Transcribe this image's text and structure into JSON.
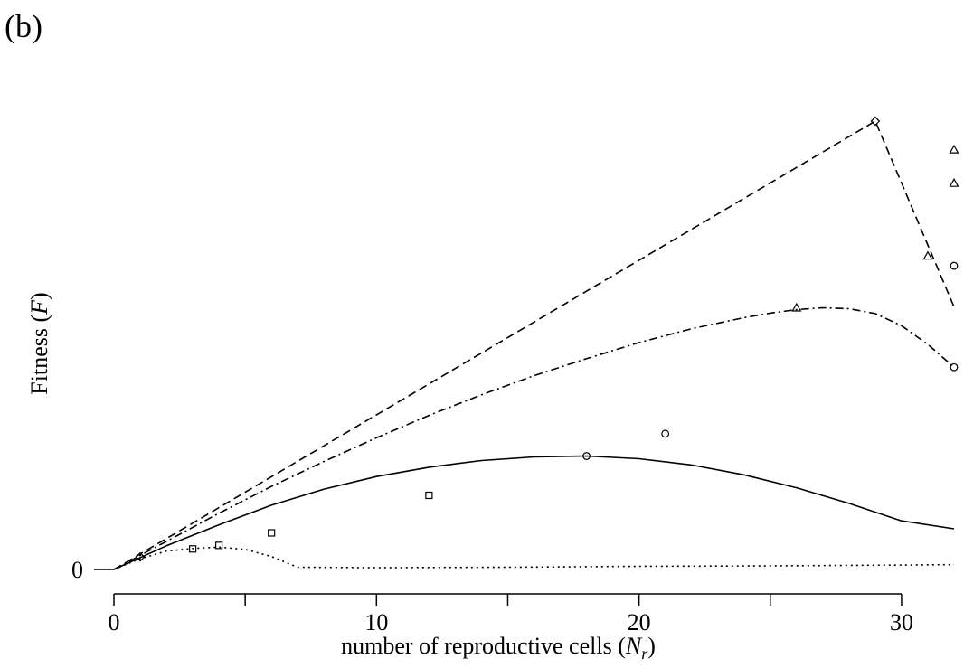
{
  "panel_label": "(b)",
  "chart_data": {
    "type": "line",
    "xlabel_text": "number of reproductive cells (",
    "xlabel_var": "N",
    "xlabel_sub": "r",
    "xlabel_close": ")",
    "ylabel_text": "Fitness (",
    "ylabel_var": "F",
    "ylabel_close": ")",
    "xlim": [
      0,
      32
    ],
    "ylim": [
      0,
      100
    ],
    "x_ticks": [
      0,
      5,
      10,
      15,
      20,
      25,
      30
    ],
    "x_tick_labels": [
      "0",
      "",
      "10",
      "",
      "20",
      "",
      "30"
    ],
    "y_ticks": [
      0
    ],
    "y_tick_labels": [
      "0"
    ],
    "grid": false,
    "legend": "none",
    "series": [
      {
        "style": "dashed",
        "x": [
          0,
          29,
          32
        ],
        "y": [
          0,
          100.4,
          58.8
        ]
      },
      {
        "style": "dashdot",
        "x": [
          0,
          2,
          4,
          6,
          8,
          10,
          12,
          14,
          16,
          18,
          20,
          22,
          24,
          25,
          26,
          27,
          28,
          29,
          30,
          31,
          32
        ],
        "y": [
          0,
          6.3,
          12.6,
          18.6,
          24.2,
          29.5,
          34.5,
          39.1,
          43.4,
          47.2,
          50.8,
          53.9,
          56.4,
          57.4,
          58.2,
          58.6,
          58.4,
          57.3,
          54.6,
          50.4,
          45.3
        ]
      },
      {
        "style": "solid",
        "x": [
          0,
          2,
          4,
          6,
          8,
          10,
          12,
          14,
          16,
          18,
          20,
          22,
          24,
          26,
          28,
          30,
          32
        ],
        "y": [
          0,
          5.3,
          10.0,
          14.4,
          18.0,
          20.8,
          22.9,
          24.4,
          25.2,
          25.4,
          24.8,
          23.4,
          21.2,
          18.3,
          14.8,
          10.9,
          9.1
        ]
      },
      {
        "style": "dotted",
        "x": [
          0,
          1,
          2,
          3,
          4,
          5,
          6,
          7,
          10,
          15,
          20,
          25,
          30,
          32
        ],
        "y": [
          0,
          2.4,
          4.1,
          4.7,
          5.0,
          4.5,
          2.9,
          0.5,
          0.4,
          0.5,
          0.7,
          0.8,
          1.0,
          1.1
        ]
      }
    ],
    "markers": [
      {
        "shape": "square",
        "x": 3,
        "y": 4.6
      },
      {
        "shape": "square",
        "x": 4,
        "y": 5.4
      },
      {
        "shape": "square",
        "x": 6,
        "y": 8.2
      },
      {
        "shape": "square",
        "x": 12,
        "y": 16.6
      },
      {
        "shape": "circle",
        "x": 18,
        "y": 25.4
      },
      {
        "shape": "circle",
        "x": 21,
        "y": 30.4
      },
      {
        "shape": "circle",
        "x": 32,
        "y": 45.3
      },
      {
        "shape": "circle",
        "x": 32,
        "y": 68.0
      },
      {
        "shape": "diamond",
        "x": 1,
        "y": 2.8
      },
      {
        "shape": "diamond",
        "x": 29,
        "y": 100.4
      },
      {
        "shape": "triangle",
        "x": 26,
        "y": 58.6
      },
      {
        "shape": "triangle",
        "x": 31,
        "y": 70.2
      },
      {
        "shape": "triangle",
        "x": 32,
        "y": 86.5
      },
      {
        "shape": "triangle",
        "x": 32,
        "y": 94.0
      }
    ]
  }
}
